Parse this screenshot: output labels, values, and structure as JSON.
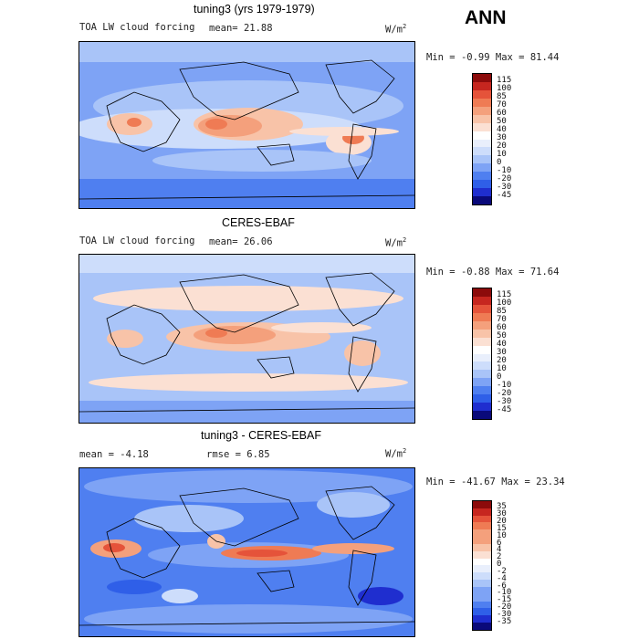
{
  "season": "ANN",
  "palette_main": [
    "#0a0a7a",
    "#1f2ecf",
    "#2f5fe8",
    "#4f7ff0",
    "#7ea3f5",
    "#a9c4f8",
    "#cdddfb",
    "#e9effc",
    "#ffffff",
    "#fbe0d3",
    "#f8c3a8",
    "#f4a07c",
    "#ef7b54",
    "#e5533a",
    "#c6261f",
    "#8c0b0b"
  ],
  "palette_diff": [
    "#0a0a7a",
    "#1f2ecf",
    "#2f5fe8",
    "#4f7ff0",
    "#7ea3f5",
    "#a9c4f8",
    "#cdddfb",
    "#e9effc",
    "#ffffff",
    "#fbe0d3",
    "#f8c3a8",
    "#f4a07c",
    "#ef7b54",
    "#e5533a",
    "#c6261f",
    "#8c0b0b"
  ],
  "panels": [
    {
      "title": "tuning3 (yrs 1979-1979)",
      "variable": "TOA LW cloud forcing",
      "mean_label": "mean=",
      "mean_value": "21.88",
      "units": "W/m",
      "units_exp": "2",
      "min_label": "Min =",
      "min_value": "-0.99",
      "max_label": "Max =",
      "max_value": "81.44",
      "levels": [
        "115",
        "100",
        "85",
        "70",
        "60",
        "50",
        "40",
        "30",
        "20",
        "10",
        "0",
        "-10",
        "-20",
        "-30",
        "-45"
      ]
    },
    {
      "title": "CERES-EBAF",
      "variable": "TOA LW cloud forcing",
      "mean_label": "mean=",
      "mean_value": "26.06",
      "units": "W/m",
      "units_exp": "2",
      "min_label": "Min =",
      "min_value": "-0.88",
      "max_label": "Max =",
      "max_value": "71.64",
      "levels": [
        "115",
        "100",
        "85",
        "70",
        "60",
        "50",
        "40",
        "30",
        "20",
        "10",
        "0",
        "-10",
        "-20",
        "-30",
        "-45"
      ]
    },
    {
      "title": "tuning3 - CERES-EBAF",
      "mean_label": "mean =",
      "mean_value": "-4.18",
      "rmse_label": "rmse =",
      "rmse_value": "6.85",
      "units": "W/m",
      "units_exp": "2",
      "min_label": "Min =",
      "min_value": "-41.67",
      "max_label": "Max =",
      "max_value": "23.34",
      "levels": [
        "35",
        "30",
        "20",
        "15",
        "10",
        "6",
        "4",
        "2",
        "0",
        "-2",
        "-4",
        "-6",
        "-10",
        "-15",
        "-20",
        "-30",
        "-35"
      ]
    }
  ]
}
